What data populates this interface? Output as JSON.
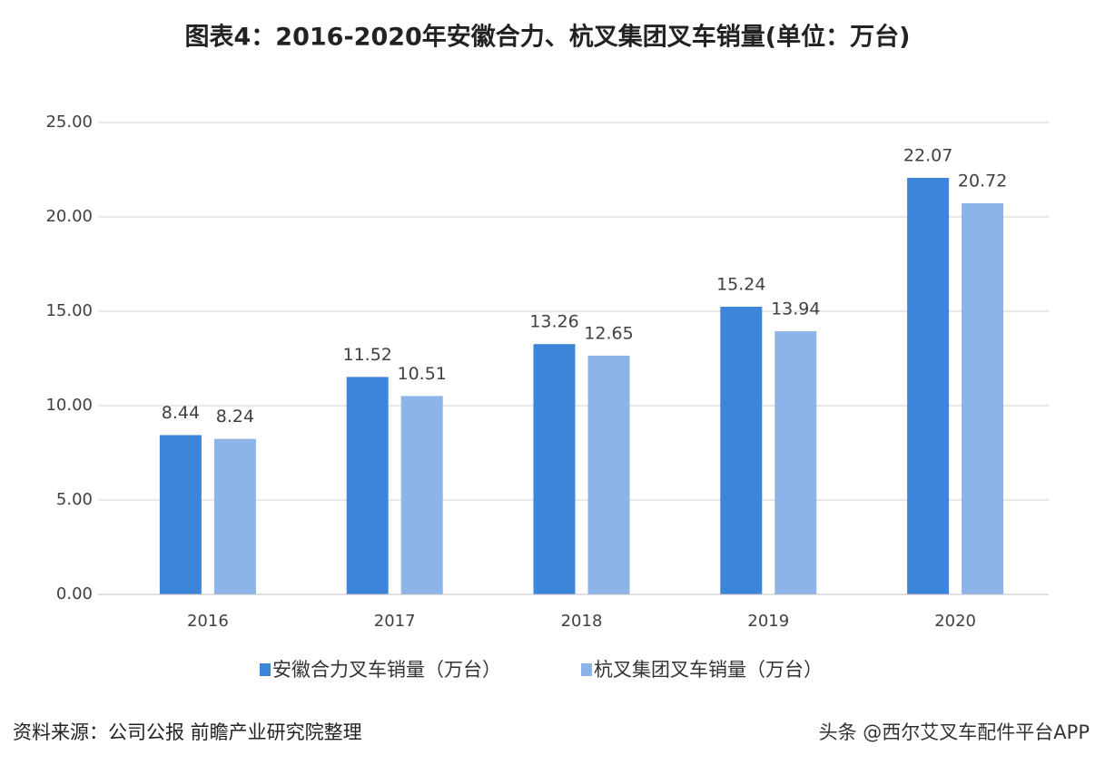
{
  "chart_data": {
    "type": "bar",
    "title": "图表4：2016-2020年安徽合力、杭叉集团叉车销量(单位：万台)",
    "categories": [
      "2016",
      "2017",
      "2018",
      "2019",
      "2020"
    ],
    "series": [
      {
        "name": "安徽合力叉车销量（万台）",
        "color": "#3d85d8",
        "values": [
          8.44,
          11.52,
          13.26,
          15.24,
          22.07
        ]
      },
      {
        "name": "杭叉集团叉车销量（万台）",
        "color": "#8db4e8",
        "values": [
          8.24,
          10.51,
          12.65,
          13.94,
          20.72
        ]
      }
    ],
    "ylim": [
      0,
      25
    ],
    "yticks": [
      {
        "value": 0,
        "label": "0.00"
      },
      {
        "value": 5,
        "label": "5.00"
      },
      {
        "value": 10,
        "label": "10.00"
      },
      {
        "value": 15,
        "label": "15.00"
      },
      {
        "value": 20,
        "label": "20.00"
      },
      {
        "value": 25,
        "label": "25.00"
      }
    ],
    "grid": true,
    "legend": "bottom",
    "source": "资料来源：公司公报 前瞻产业研究院整理",
    "watermark": "头条 @西尔艾叉车配件平台APP"
  }
}
